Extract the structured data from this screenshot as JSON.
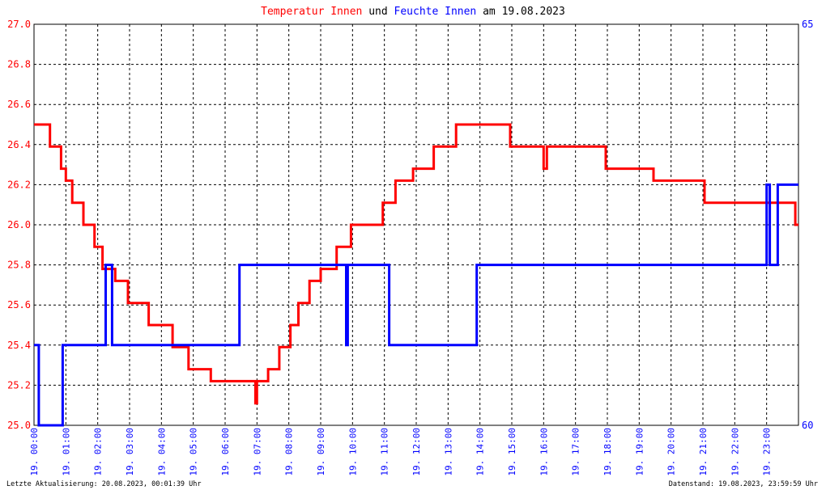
{
  "title": {
    "part1": "Temperatur Innen",
    "part2": " und ",
    "part3": "Feuchte Innen",
    "part4": " am 19.08.2023"
  },
  "colors": {
    "temperature": "#ff0000",
    "humidity": "#0000ff",
    "title_text": "#000000",
    "grid": "#000000",
    "background": "#ffffff"
  },
  "footer": {
    "left": "Letzte Aktualisierung: 20.08.2023, 00:01:39 Uhr",
    "right": "Datenstand: 19.08.2023, 23:59:59 Uhr"
  },
  "chart_data": {
    "type": "line",
    "title": "Temperatur Innen und Feuchte Innen am 19.08.2023",
    "x_unit": "hours",
    "x_range": [
      0,
      24
    ],
    "x_tick_labels": [
      "19. 00:00",
      "19. 01:00",
      "19. 02:00",
      "19. 03:00",
      "19. 04:00",
      "19. 05:00",
      "19. 06:00",
      "19. 07:00",
      "19. 08:00",
      "19. 09:00",
      "19. 10:00",
      "19. 11:00",
      "19. 12:00",
      "19. 13:00",
      "19. 14:00",
      "19. 15:00",
      "19. 16:00",
      "19. 17:00",
      "19. 18:00",
      "19. 19:00",
      "19. 20:00",
      "19. 21:00",
      "19. 22:00",
      "19. 23:00"
    ],
    "y_left": {
      "range": [
        25.0,
        27.0
      ],
      "tick_labels": [
        "25.0",
        "25.2",
        "25.4",
        "25.6",
        "25.8",
        "26.0",
        "26.2",
        "26.4",
        "26.6",
        "26.8",
        "27.0"
      ]
    },
    "y_right": {
      "range": [
        60,
        65
      ],
      "tick_labels": [
        "60",
        "65"
      ]
    },
    "grid": true,
    "series": [
      {
        "name": "Temperatur Innen",
        "axis": "left",
        "color": "#ff0000",
        "points": [
          [
            0.0,
            26.5
          ],
          [
            0.5,
            26.5
          ],
          [
            0.5,
            26.39
          ],
          [
            0.85,
            26.39
          ],
          [
            0.85,
            26.28
          ],
          [
            1.0,
            26.28
          ],
          [
            1.0,
            26.22
          ],
          [
            1.2,
            26.22
          ],
          [
            1.2,
            26.11
          ],
          [
            1.55,
            26.11
          ],
          [
            1.55,
            26.0
          ],
          [
            1.9,
            26.0
          ],
          [
            1.9,
            25.89
          ],
          [
            2.15,
            25.89
          ],
          [
            2.15,
            25.78
          ],
          [
            2.55,
            25.78
          ],
          [
            2.55,
            25.72
          ],
          [
            2.95,
            25.72
          ],
          [
            2.95,
            25.61
          ],
          [
            3.6,
            25.61
          ],
          [
            3.6,
            25.5
          ],
          [
            4.35,
            25.5
          ],
          [
            4.35,
            25.39
          ],
          [
            4.85,
            25.39
          ],
          [
            4.85,
            25.28
          ],
          [
            5.55,
            25.28
          ],
          [
            5.55,
            25.22
          ],
          [
            6.95,
            25.22
          ],
          [
            6.95,
            25.11
          ],
          [
            7.0,
            25.11
          ],
          [
            7.0,
            25.22
          ],
          [
            7.35,
            25.22
          ],
          [
            7.35,
            25.28
          ],
          [
            7.7,
            25.28
          ],
          [
            7.7,
            25.39
          ],
          [
            8.05,
            25.39
          ],
          [
            8.05,
            25.5
          ],
          [
            8.3,
            25.5
          ],
          [
            8.3,
            25.61
          ],
          [
            8.65,
            25.61
          ],
          [
            8.65,
            25.72
          ],
          [
            9.0,
            25.72
          ],
          [
            9.0,
            25.78
          ],
          [
            9.5,
            25.78
          ],
          [
            9.5,
            25.89
          ],
          [
            9.95,
            25.89
          ],
          [
            9.95,
            26.0
          ],
          [
            10.95,
            26.0
          ],
          [
            10.95,
            26.11
          ],
          [
            11.35,
            26.11
          ],
          [
            11.35,
            26.22
          ],
          [
            11.9,
            26.22
          ],
          [
            11.9,
            26.28
          ],
          [
            12.55,
            26.28
          ],
          [
            12.55,
            26.39
          ],
          [
            13.25,
            26.39
          ],
          [
            13.25,
            26.5
          ],
          [
            14.95,
            26.5
          ],
          [
            14.95,
            26.39
          ],
          [
            16.0,
            26.39
          ],
          [
            16.0,
            26.28
          ],
          [
            16.1,
            26.28
          ],
          [
            16.1,
            26.39
          ],
          [
            17.95,
            26.39
          ],
          [
            17.95,
            26.28
          ],
          [
            19.45,
            26.28
          ],
          [
            19.45,
            26.22
          ],
          [
            21.05,
            26.22
          ],
          [
            21.05,
            26.11
          ],
          [
            23.9,
            26.11
          ],
          [
            23.9,
            26.0
          ],
          [
            24.0,
            26.0
          ]
        ]
      },
      {
        "name": "Feuchte Innen",
        "axis": "right",
        "color": "#0000ff",
        "points": [
          [
            0.0,
            61.0
          ],
          [
            0.15,
            61.0
          ],
          [
            0.15,
            60.0
          ],
          [
            0.9,
            60.0
          ],
          [
            0.9,
            61.0
          ],
          [
            2.25,
            61.0
          ],
          [
            2.25,
            62.0
          ],
          [
            2.45,
            62.0
          ],
          [
            2.45,
            61.0
          ],
          [
            6.45,
            61.0
          ],
          [
            6.45,
            62.0
          ],
          [
            9.8,
            62.0
          ],
          [
            9.8,
            61.0
          ],
          [
            9.85,
            61.0
          ],
          [
            9.85,
            62.0
          ],
          [
            11.15,
            62.0
          ],
          [
            11.15,
            61.0
          ],
          [
            13.9,
            61.0
          ],
          [
            13.9,
            62.0
          ],
          [
            23.0,
            62.0
          ],
          [
            23.0,
            63.0
          ],
          [
            23.1,
            63.0
          ],
          [
            23.1,
            62.0
          ],
          [
            23.35,
            62.0
          ],
          [
            23.35,
            63.0
          ],
          [
            24.0,
            63.0
          ]
        ]
      }
    ]
  }
}
